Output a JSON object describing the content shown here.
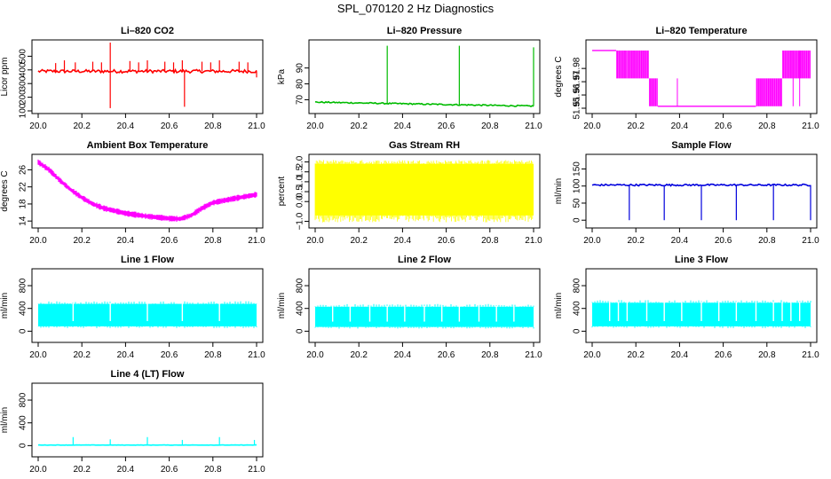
{
  "title": "SPL_070120  2 Hz Diagnostics",
  "chart_data": [
    {
      "type": "line",
      "title": "Li–820 CO2",
      "ylabel": "Licor ppm",
      "color": "#ff0000",
      "xlim": [
        20.0,
        21.0
      ],
      "ylim": [
        100,
        600
      ],
      "x_ticks": [
        "20.0",
        "20.2",
        "20.4",
        "20.6",
        "20.8",
        "21.0"
      ],
      "y_ticks": [
        "100",
        "200",
        "300",
        "400",
        "500"
      ],
      "baseline": 390,
      "noise": 12,
      "spikes": [
        {
          "x": 20.08,
          "y": 450
        },
        {
          "x": 20.12,
          "y": 470
        },
        {
          "x": 20.17,
          "y": 455
        },
        {
          "x": 20.25,
          "y": 460
        },
        {
          "x": 20.29,
          "y": 455
        },
        {
          "x": 20.33,
          "y": 600
        },
        {
          "x": 20.33,
          "y": 120
        },
        {
          "x": 20.42,
          "y": 465
        },
        {
          "x": 20.46,
          "y": 455
        },
        {
          "x": 20.5,
          "y": 470
        },
        {
          "x": 20.58,
          "y": 460
        },
        {
          "x": 20.62,
          "y": 455
        },
        {
          "x": 20.66,
          "y": 470
        },
        {
          "x": 20.67,
          "y": 130
        },
        {
          "x": 20.75,
          "y": 460
        },
        {
          "x": 20.79,
          "y": 455
        },
        {
          "x": 20.83,
          "y": 470
        },
        {
          "x": 20.92,
          "y": 460
        },
        {
          "x": 20.96,
          "y": 455
        },
        {
          "x": 21.0,
          "y": 345
        }
      ]
    },
    {
      "type": "line",
      "title": "Li–820 Pressure",
      "ylabel": "kPa",
      "color": "#00bb00",
      "xlim": [
        20.0,
        21.0
      ],
      "ylim": [
        63,
        106
      ],
      "x_ticks": [
        "20.0",
        "20.2",
        "20.4",
        "20.6",
        "20.8",
        "21.0"
      ],
      "y_ticks": [
        "70",
        "80",
        "90"
      ],
      "trend": [
        {
          "x": 20.0,
          "y": 68.5
        },
        {
          "x": 21.0,
          "y": 66.0
        }
      ],
      "noise": 0.4,
      "spikes": [
        {
          "x": 20.33,
          "y": 104
        },
        {
          "x": 20.66,
          "y": 104
        },
        {
          "x": 21.0,
          "y": 103
        }
      ]
    },
    {
      "type": "line",
      "title": "Li–820 Temperature",
      "ylabel": "degrees C",
      "color": "#ff00ff",
      "xlim": [
        20.0,
        21.0
      ],
      "ylim": [
        51.948,
        51.9995
      ],
      "x_ticks": [
        "20.0",
        "20.2",
        "20.4",
        "20.6",
        "20.8",
        "21.0"
      ],
      "y_ticks": [
        "51.95",
        "51.96",
        "51.97",
        "51.98"
      ],
      "levels": [
        51.9515,
        51.9725,
        51.9935
      ],
      "segments": [
        {
          "x0": 20.0,
          "x1": 20.11,
          "from": 51.9935,
          "to": 51.9935
        },
        {
          "x0": 20.11,
          "x1": 20.16,
          "from": 51.9725,
          "to": 51.9935
        },
        {
          "x0": 20.16,
          "x1": 20.26,
          "from": 51.9725,
          "to": 51.9935
        },
        {
          "x0": 20.26,
          "x1": 20.3,
          "from": 51.9515,
          "to": 51.9725
        },
        {
          "x0": 20.3,
          "x1": 20.75,
          "from": 51.9515,
          "to": 51.9515
        },
        {
          "x0": 20.75,
          "x1": 20.87,
          "from": 51.9515,
          "to": 51.9725
        },
        {
          "x0": 20.87,
          "x1": 21.0,
          "from": 51.9725,
          "to": 51.9935
        }
      ]
    },
    {
      "type": "line",
      "title": "Ambient Box Temperature",
      "ylabel": "degrees C",
      "color": "#ff00ff",
      "xlim": [
        20.0,
        21.0
      ],
      "ylim": [
        13,
        29
      ],
      "x_ticks": [
        "20.0",
        "20.2",
        "20.4",
        "20.6",
        "20.8",
        "21.0"
      ],
      "y_ticks": [
        "14",
        "18",
        "22",
        "26"
      ],
      "curve": [
        {
          "x": 20.0,
          "y": 27.8
        },
        {
          "x": 20.05,
          "y": 26.0
        },
        {
          "x": 20.1,
          "y": 23.5
        },
        {
          "x": 20.15,
          "y": 21.3
        },
        {
          "x": 20.2,
          "y": 19.5
        },
        {
          "x": 20.25,
          "y": 18.0
        },
        {
          "x": 20.3,
          "y": 17.0
        },
        {
          "x": 20.4,
          "y": 15.8
        },
        {
          "x": 20.5,
          "y": 15.1
        },
        {
          "x": 20.6,
          "y": 14.6
        },
        {
          "x": 20.65,
          "y": 14.5
        },
        {
          "x": 20.7,
          "y": 15.3
        },
        {
          "x": 20.75,
          "y": 17.0
        },
        {
          "x": 20.8,
          "y": 18.3
        },
        {
          "x": 20.9,
          "y": 19.3
        },
        {
          "x": 21.0,
          "y": 20.2
        }
      ],
      "noise": 0.6
    },
    {
      "type": "line",
      "title": "Gas Stream RH",
      "ylabel": "percent",
      "color": "#ffff00",
      "xlim": [
        20.0,
        21.0
      ],
      "ylim": [
        -1.2,
        2.25
      ],
      "x_ticks": [
        "20.0",
        "20.2",
        "20.4",
        "20.6",
        "20.8",
        "21.0"
      ],
      "y_ticks": [
        "−1.0",
        "0.0",
        "0.5",
        "1.0",
        "1.5",
        "2.0"
      ],
      "band_low": -0.7,
      "band_high": 1.9,
      "extreme_low": -1.05,
      "extreme_high": 2.1
    },
    {
      "type": "line",
      "title": "Sample Flow",
      "ylabel": "ml/min",
      "color": "#0000dd",
      "xlim": [
        20.0,
        21.0
      ],
      "ylim": [
        -15,
        185
      ],
      "x_ticks": [
        "20.0",
        "20.2",
        "20.4",
        "20.6",
        "20.8",
        "21.0"
      ],
      "y_ticks": [
        "0",
        "50",
        "100",
        "150"
      ],
      "baseline": 103,
      "noise": 2.5,
      "spikes": [
        {
          "x": 20.17,
          "y": 0
        },
        {
          "x": 20.33,
          "y": 0
        },
        {
          "x": 20.5,
          "y": 0
        },
        {
          "x": 20.66,
          "y": 0
        },
        {
          "x": 20.83,
          "y": 0
        },
        {
          "x": 21.0,
          "y": 0
        }
      ]
    },
    {
      "type": "line",
      "title": "Line 1 Flow",
      "ylabel": "ml/min",
      "color": "#00ffff",
      "xlim": [
        20.0,
        21.0
      ],
      "ylim": [
        -150,
        1050
      ],
      "x_ticks": [
        "20.0",
        "20.2",
        "20.4",
        "20.6",
        "20.8",
        "21.0"
      ],
      "y_ticks": [
        "0",
        "400",
        "800"
      ],
      "band_low": 85,
      "band_high": 480,
      "gaps": [
        20.16,
        20.33,
        20.5,
        20.66,
        20.83
      ]
    },
    {
      "type": "line",
      "title": "Line 2 Flow",
      "ylabel": "ml/min",
      "color": "#00ffff",
      "xlim": [
        20.0,
        21.0
      ],
      "ylim": [
        -150,
        1050
      ],
      "x_ticks": [
        "20.0",
        "20.2",
        "20.4",
        "20.6",
        "20.8",
        "21.0"
      ],
      "y_ticks": [
        "0",
        "400",
        "800"
      ],
      "band_low": 75,
      "band_high": 430,
      "gaps": [
        20.08,
        20.16,
        20.25,
        20.33,
        20.41,
        20.5,
        20.58,
        20.66,
        20.75,
        20.83,
        20.91
      ]
    },
    {
      "type": "line",
      "title": "Line 3 Flow",
      "ylabel": "ml/min",
      "color": "#00ffff",
      "xlim": [
        20.0,
        21.0
      ],
      "ylim": [
        -150,
        1050
      ],
      "x_ticks": [
        "20.0",
        "20.2",
        "20.4",
        "20.6",
        "20.8",
        "21.0"
      ],
      "y_ticks": [
        "0",
        "400",
        "800"
      ],
      "band_low": 85,
      "band_high": 500,
      "gaps": [
        20.08,
        20.12,
        20.16,
        20.25,
        20.33,
        20.41,
        20.5,
        20.58,
        20.66,
        20.75,
        20.83,
        20.87,
        20.91,
        20.95
      ]
    },
    {
      "type": "line",
      "title": "Line 4 (LT) Flow",
      "ylabel": "ml/min",
      "color": "#00ffff",
      "xlim": [
        20.0,
        21.0
      ],
      "ylim": [
        -150,
        1050
      ],
      "x_ticks": [
        "20.0",
        "20.2",
        "20.4",
        "20.6",
        "20.8",
        "21.0"
      ],
      "y_ticks": [
        "0",
        "400",
        "800"
      ],
      "baseline": 10,
      "noise": 2,
      "spikes": [
        {
          "x": 20.16,
          "y": 150
        },
        {
          "x": 20.33,
          "y": 110
        },
        {
          "x": 20.5,
          "y": 150
        },
        {
          "x": 20.66,
          "y": 100
        },
        {
          "x": 20.83,
          "y": 150
        },
        {
          "x": 20.99,
          "y": 100
        }
      ]
    }
  ]
}
